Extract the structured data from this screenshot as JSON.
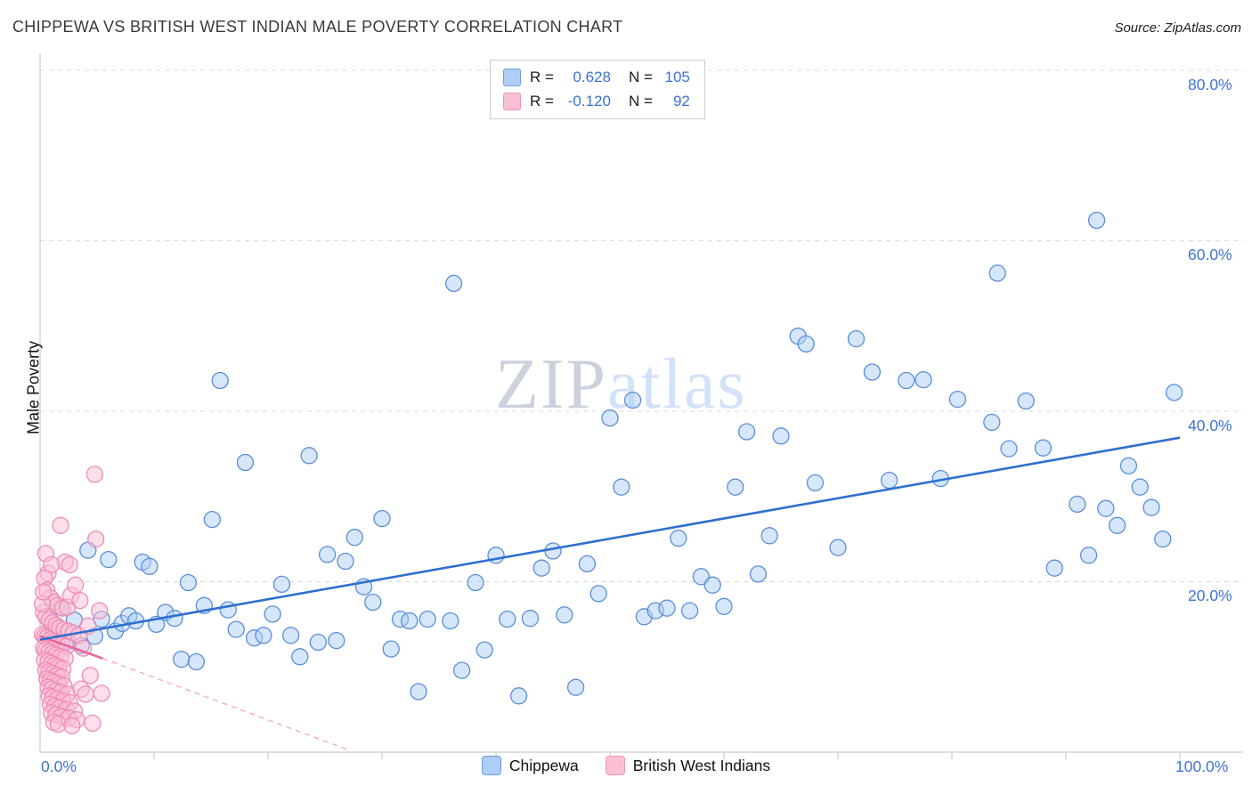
{
  "header": {
    "title": "CHIPPEWA VS BRITISH WEST INDIAN MALE POVERTY CORRELATION CHART",
    "source": "Source: ZipAtlas.com"
  },
  "watermark": {
    "part1": "ZIP",
    "part2": "atlas"
  },
  "legend_box": {
    "rows": [
      {
        "series": "Chippewa",
        "r_label": "R =",
        "r_value": "0.628",
        "n_label": "N =",
        "n_value": "105"
      },
      {
        "series": "British West Indians",
        "r_label": "R =",
        "r_value": "-0.120",
        "n_label": "N =",
        "n_value": "92"
      }
    ]
  },
  "axes": {
    "y_label": "Male Poverty",
    "y_ticks": [
      "80.0%",
      "60.0%",
      "40.0%",
      "20.0%"
    ],
    "x_tick_left": "0.0%",
    "x_tick_right": "100.0%"
  },
  "bottom_legend": [
    {
      "label": "Chippewa",
      "color": "#aecdf7"
    },
    {
      "label": "British West Indians",
      "color": "#f9c0d6"
    }
  ],
  "colors": {
    "accent_blue_text": "#3a72d8",
    "grid": "#dadada",
    "axis": "#c2c2c2",
    "chippewa_fill": "#aecdf7",
    "chippewa_stroke": "#5a8ed8",
    "chippewa_trend": "#2e6fd0",
    "bwi_fill": "#f9c0d6",
    "bwi_stroke": "#ee8cb4",
    "bwi_trend": "#e8649a",
    "bwi_trend_dashed": "#f2abc6"
  },
  "chart_data": {
    "type": "scatter",
    "title": "CHIPPEWA VS BRITISH WEST INDIAN MALE POVERTY CORRELATION CHART",
    "xlabel": "",
    "ylabel": "Male Poverty",
    "xlim": [
      0,
      105.5
    ],
    "ylim": [
      0,
      82
    ],
    "x_tick_labels": [
      "0.0%",
      "100.0%"
    ],
    "y_tick_labels": [
      "20.0%",
      "40.0%",
      "60.0%",
      "80.0%"
    ],
    "y_gridlines": [
      20,
      40,
      60,
      80
    ],
    "x_minor_tick_step": 10,
    "legend_position": "bottom",
    "series": [
      {
        "name": "Chippewa",
        "R": 0.628,
        "N": 105,
        "marker_fill": "#aecdf7",
        "marker_stroke": "#5a8ed8",
        "trend_color": "#2e6fd0",
        "trend": {
          "x1": 0,
          "y1": 13.2,
          "x2": 100,
          "y2": 36.9
        },
        "points": [
          [
            1.2,
            14.0
          ],
          [
            1.8,
            17.0
          ],
          [
            2.4,
            13.0
          ],
          [
            3.0,
            15.5
          ],
          [
            3.6,
            12.5
          ],
          [
            4.2,
            23.7
          ],
          [
            4.8,
            13.6
          ],
          [
            5.4,
            15.6
          ],
          [
            6.0,
            22.6
          ],
          [
            6.6,
            14.2
          ],
          [
            7.2,
            15.1
          ],
          [
            7.8,
            16.0
          ],
          [
            8.4,
            15.4
          ],
          [
            9.0,
            22.3
          ],
          [
            9.6,
            21.8
          ],
          [
            10.2,
            15.0
          ],
          [
            11.0,
            16.4
          ],
          [
            11.8,
            15.7
          ],
          [
            12.4,
            10.9
          ],
          [
            13.0,
            19.9
          ],
          [
            13.7,
            10.6
          ],
          [
            14.4,
            17.2
          ],
          [
            15.1,
            27.3
          ],
          [
            15.8,
            43.6
          ],
          [
            16.5,
            16.7
          ],
          [
            17.2,
            14.4
          ],
          [
            18.0,
            34.0
          ],
          [
            18.8,
            13.4
          ],
          [
            19.6,
            13.7
          ],
          [
            20.4,
            16.2
          ],
          [
            21.2,
            19.7
          ],
          [
            22.0,
            13.7
          ],
          [
            22.8,
            11.2
          ],
          [
            23.6,
            34.8
          ],
          [
            24.4,
            12.9
          ],
          [
            25.2,
            23.2
          ],
          [
            26.0,
            13.1
          ],
          [
            26.8,
            22.4
          ],
          [
            27.6,
            25.2
          ],
          [
            28.4,
            19.4
          ],
          [
            29.2,
            17.6
          ],
          [
            30.0,
            27.4
          ],
          [
            30.8,
            12.1
          ],
          [
            31.6,
            15.6
          ],
          [
            32.4,
            15.4
          ],
          [
            33.2,
            7.1
          ],
          [
            34.0,
            15.6
          ],
          [
            36.3,
            55.0
          ],
          [
            36.0,
            15.4
          ],
          [
            37.0,
            9.6
          ],
          [
            38.2,
            19.9
          ],
          [
            39.0,
            12.0
          ],
          [
            40.0,
            23.1
          ],
          [
            41.0,
            15.6
          ],
          [
            42.0,
            6.6
          ],
          [
            43.0,
            15.7
          ],
          [
            44.0,
            21.6
          ],
          [
            45.0,
            23.6
          ],
          [
            46.0,
            16.1
          ],
          [
            47.0,
            7.6
          ],
          [
            48.0,
            22.1
          ],
          [
            49.0,
            18.6
          ],
          [
            50.0,
            39.2
          ],
          [
            51.0,
            31.1
          ],
          [
            52.0,
            41.3
          ],
          [
            53.0,
            15.9
          ],
          [
            54.0,
            16.6
          ],
          [
            55.0,
            16.9
          ],
          [
            56.0,
            25.1
          ],
          [
            57.0,
            16.6
          ],
          [
            58.0,
            20.6
          ],
          [
            59.0,
            19.6
          ],
          [
            60.0,
            17.1
          ],
          [
            61.0,
            31.1
          ],
          [
            62.0,
            37.6
          ],
          [
            63.0,
            20.9
          ],
          [
            64.0,
            25.4
          ],
          [
            65.0,
            37.1
          ],
          [
            66.5,
            48.8
          ],
          [
            67.2,
            47.9
          ],
          [
            68.0,
            31.6
          ],
          [
            70.0,
            24.0
          ],
          [
            71.6,
            48.5
          ],
          [
            73.0,
            44.6
          ],
          [
            74.5,
            31.9
          ],
          [
            76.0,
            43.6
          ],
          [
            77.5,
            43.7
          ],
          [
            79.0,
            32.1
          ],
          [
            80.5,
            41.4
          ],
          [
            84.0,
            56.2
          ],
          [
            83.5,
            38.7
          ],
          [
            85.0,
            35.6
          ],
          [
            86.5,
            41.2
          ],
          [
            88.0,
            35.7
          ],
          [
            89.0,
            21.6
          ],
          [
            92.7,
            62.4
          ],
          [
            91.0,
            29.1
          ],
          [
            92.0,
            23.1
          ],
          [
            93.5,
            28.6
          ],
          [
            94.5,
            26.6
          ],
          [
            95.5,
            33.6
          ],
          [
            96.5,
            31.1
          ],
          [
            97.5,
            28.7
          ],
          [
            98.5,
            25.0
          ],
          [
            99.5,
            42.2
          ]
        ]
      },
      {
        "name": "British West Indians",
        "R": -0.12,
        "N": 92,
        "marker_fill": "#f9c0d6",
        "marker_stroke": "#ee8cb4",
        "trend_color": "#e8649a",
        "trend": {
          "x1": 0,
          "y1": 13.6,
          "x2": 5.5,
          "y2": 11.0
        },
        "trend_dashed": {
          "x1": 5.5,
          "y1": 11.0,
          "x2": 27.2,
          "y2": 0.2
        },
        "trend_dashed_color": "#f2abc6",
        "points": [
          [
            4.8,
            32.6
          ],
          [
            1.8,
            26.6
          ],
          [
            4.9,
            25.0
          ],
          [
            2.2,
            22.3
          ],
          [
            0.5,
            23.3
          ],
          [
            0.7,
            21.0
          ],
          [
            1.0,
            22.0
          ],
          [
            2.6,
            22.0
          ],
          [
            0.4,
            20.4
          ],
          [
            0.6,
            19.0
          ],
          [
            0.9,
            18.1
          ],
          [
            1.2,
            17.6
          ],
          [
            1.5,
            17.2
          ],
          [
            2.0,
            16.9
          ],
          [
            2.4,
            17.0
          ],
          [
            0.3,
            16.4
          ],
          [
            0.5,
            15.9
          ],
          [
            0.8,
            15.5
          ],
          [
            1.1,
            15.2
          ],
          [
            1.4,
            14.9
          ],
          [
            1.7,
            14.6
          ],
          [
            2.1,
            14.4
          ],
          [
            2.5,
            14.2
          ],
          [
            2.9,
            14.0
          ],
          [
            0.2,
            13.8
          ],
          [
            0.4,
            13.6
          ],
          [
            0.6,
            13.4
          ],
          [
            0.9,
            13.2
          ],
          [
            1.2,
            13.0
          ],
          [
            1.5,
            12.8
          ],
          [
            1.9,
            12.6
          ],
          [
            2.3,
            12.4
          ],
          [
            0.3,
            12.2
          ],
          [
            0.5,
            12.0
          ],
          [
            0.8,
            11.8
          ],
          [
            1.1,
            11.6
          ],
          [
            1.4,
            11.4
          ],
          [
            1.8,
            11.2
          ],
          [
            2.2,
            11.0
          ],
          [
            0.4,
            10.8
          ],
          [
            0.7,
            10.6
          ],
          [
            1.0,
            10.4
          ],
          [
            1.3,
            10.2
          ],
          [
            1.6,
            10.0
          ],
          [
            2.0,
            9.8
          ],
          [
            0.5,
            9.6
          ],
          [
            0.8,
            9.4
          ],
          [
            1.1,
            9.2
          ],
          [
            1.5,
            9.0
          ],
          [
            1.9,
            8.8
          ],
          [
            0.6,
            8.6
          ],
          [
            0.9,
            8.4
          ],
          [
            1.2,
            8.2
          ],
          [
            1.6,
            8.0
          ],
          [
            2.1,
            7.8
          ],
          [
            0.7,
            7.6
          ],
          [
            1.0,
            7.4
          ],
          [
            1.4,
            7.2
          ],
          [
            1.8,
            7.0
          ],
          [
            2.4,
            6.8
          ],
          [
            0.8,
            6.6
          ],
          [
            1.1,
            6.4
          ],
          [
            1.5,
            6.2
          ],
          [
            2.0,
            6.0
          ],
          [
            2.6,
            5.8
          ],
          [
            0.9,
            5.6
          ],
          [
            1.3,
            5.4
          ],
          [
            1.7,
            5.2
          ],
          [
            2.3,
            5.0
          ],
          [
            3.0,
            4.8
          ],
          [
            1.0,
            4.6
          ],
          [
            1.4,
            4.4
          ],
          [
            1.9,
            4.2
          ],
          [
            2.5,
            4.0
          ],
          [
            3.2,
            3.8
          ],
          [
            1.2,
            3.5
          ],
          [
            1.6,
            3.3
          ],
          [
            2.8,
            3.1
          ],
          [
            3.6,
            7.4
          ],
          [
            4.0,
            6.8
          ],
          [
            4.4,
            9.0
          ],
          [
            3.4,
            13.7
          ],
          [
            3.8,
            12.2
          ],
          [
            4.2,
            14.8
          ],
          [
            5.2,
            16.6
          ],
          [
            2.7,
            18.4
          ],
          [
            3.1,
            19.6
          ],
          [
            3.5,
            17.8
          ],
          [
            0.2,
            17.4
          ],
          [
            0.3,
            18.8
          ],
          [
            4.6,
            3.4
          ],
          [
            5.4,
            6.9
          ]
        ]
      }
    ]
  }
}
